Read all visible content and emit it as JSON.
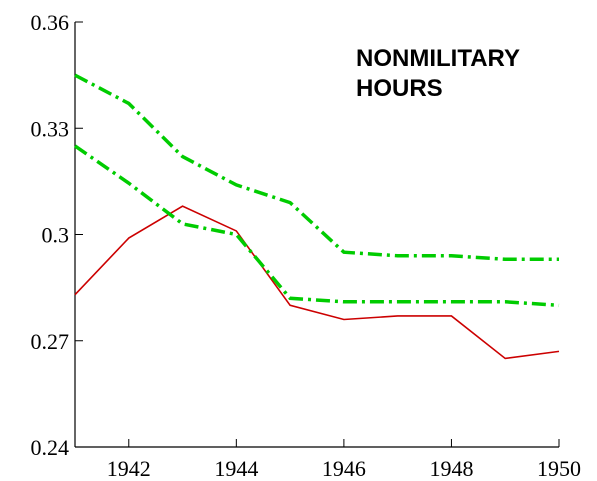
{
  "chart_data": {
    "type": "line",
    "annotation": [
      "NONMILITARY",
      "HOURS"
    ],
    "x": [
      1941,
      1942,
      1943,
      1944,
      1945,
      1946,
      1947,
      1948,
      1949,
      1950
    ],
    "series": [
      {
        "color": "#cc0000",
        "style": "solid",
        "values": [
          0.283,
          0.299,
          0.308,
          0.301,
          0.28,
          0.276,
          0.277,
          0.277,
          0.265,
          0.267
        ]
      },
      {
        "color": "#00cc00",
        "style": "dashdot",
        "values": [
          0.345,
          0.337,
          0.322,
          0.314,
          0.309,
          0.295,
          0.294,
          0.294,
          0.293,
          0.293
        ]
      },
      {
        "color": "#00cc00",
        "style": "dashdot",
        "values": [
          0.325,
          0.3145,
          0.303,
          0.3,
          0.282,
          0.281,
          0.281,
          0.281,
          0.281,
          0.28
        ]
      }
    ],
    "xlim": [
      1941,
      1950
    ],
    "xticks": [
      1942,
      1944,
      1946,
      1948,
      1950
    ],
    "ylim": [
      0.24,
      0.36
    ],
    "yticks": [
      0.24,
      0.27,
      0.3,
      0.33,
      0.36
    ]
  }
}
